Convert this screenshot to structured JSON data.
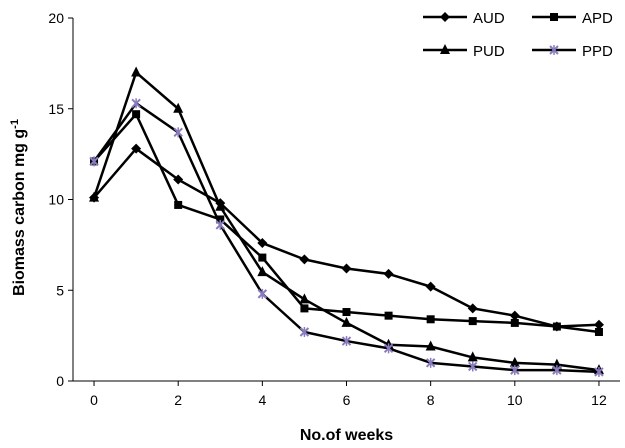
{
  "chart_data": {
    "type": "line",
    "xlabel": "No.of weeks",
    "ylabel": "Biomass carbon mg g",
    "ylabel_superscript": "-1",
    "xlim": [
      -0.5,
      12.5
    ],
    "ylim": [
      0,
      20
    ],
    "x_ticks": [
      "0",
      "2",
      "4",
      "6",
      "8",
      "10",
      "12"
    ],
    "y_ticks": [
      "0",
      "5",
      "10",
      "15",
      "20"
    ],
    "grid": false,
    "legend_position": "top-right",
    "x": [
      0,
      1,
      2,
      3,
      4,
      5,
      6,
      7,
      8,
      9,
      10,
      11,
      12
    ],
    "series": [
      {
        "name": "AUD",
        "marker": "diamond",
        "color": "#000000",
        "values": [
          10.1,
          12.8,
          11.1,
          9.8,
          7.6,
          6.7,
          6.2,
          5.9,
          5.2,
          4.0,
          3.6,
          3.0,
          3.1
        ]
      },
      {
        "name": "APD",
        "marker": "square",
        "color": "#000000",
        "values": [
          12.1,
          14.7,
          9.7,
          8.9,
          6.8,
          4.0,
          3.8,
          3.6,
          3.4,
          3.3,
          3.2,
          3.0,
          2.7
        ]
      },
      {
        "name": "PUD",
        "marker": "triangle",
        "color": "#000000",
        "values": [
          10.1,
          17.0,
          15.0,
          9.6,
          6.0,
          4.5,
          3.2,
          2.0,
          1.9,
          1.3,
          1.0,
          0.9,
          0.6
        ]
      },
      {
        "name": "PPD",
        "marker": "star",
        "color": "#000000",
        "marker_color": "#8a7bbd",
        "values": [
          12.1,
          15.3,
          13.7,
          8.6,
          4.8,
          2.7,
          2.2,
          1.8,
          1.0,
          0.8,
          0.6,
          0.6,
          0.5
        ]
      }
    ]
  }
}
